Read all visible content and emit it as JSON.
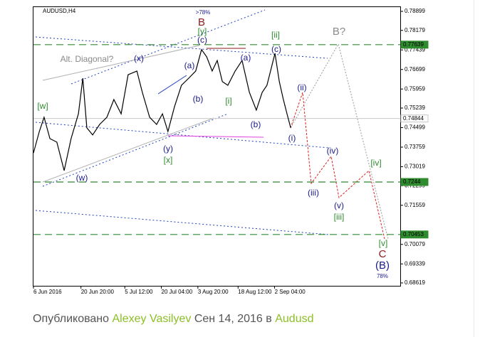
{
  "chart_data": {
    "type": "line",
    "title": "AUDUSD,H4",
    "color": "#000000",
    "x": [
      0,
      1.6,
      2.9,
      4.5,
      6.4,
      8.4,
      10.3,
      12.3,
      13.5,
      14.6,
      16.2,
      18.1,
      20.1,
      22,
      24,
      25.9,
      28.3,
      29.8,
      31.8,
      33.7,
      35.3,
      36.8,
      38.6,
      40.5,
      42.5,
      44.4,
      46,
      47.4,
      48.9,
      50.3,
      51.7,
      53.2,
      55.2,
      57.1,
      59.1,
      61,
      62.6,
      63.9,
      64.9,
      66.1,
      67.3,
      68.4,
      69.4,
      70.4
    ],
    "values": [
      0.7354,
      0.7435,
      0.7489,
      0.7408,
      0.7395,
      0.7287,
      0.7408,
      0.7502,
      0.7637,
      0.7449,
      0.7422,
      0.7462,
      0.7489,
      0.7556,
      0.7502,
      0.765,
      0.7664,
      0.7583,
      0.7489,
      0.7462,
      0.7502,
      0.7435,
      0.7529,
      0.761,
      0.7637,
      0.7664,
      0.7745,
      0.7718,
      0.7664,
      0.7704,
      0.7624,
      0.761,
      0.7664,
      0.7704,
      0.7583,
      0.7516,
      0.7583,
      0.761,
      0.7664,
      0.7731,
      0.7624,
      0.7556,
      0.7502,
      0.7449
    ],
    "xlim": [
      0,
      100
    ],
    "xticks": [
      {
        "value": 0,
        "label": "6 Jun 2016"
      },
      {
        "value": 13,
        "label": "20 Jun 20:00"
      },
      {
        "value": 25,
        "label": "5 Jul 12:00"
      },
      {
        "value": 35,
        "label": "20 Jul 04:00"
      },
      {
        "value": 45,
        "label": "3 Aug 20:00"
      },
      {
        "value": 56,
        "label": "18 Aug 12:00"
      },
      {
        "value": 66,
        "label": "2 Sep 04:00"
      }
    ],
    "ylim": [
      0.6851,
      0.7906
    ],
    "yticks": [
      0.78899,
      0.78179,
      0.77439,
      0.76699,
      0.75959,
      0.75239,
      0.74499,
      0.73759,
      0.73019,
      0.72299,
      0.71559,
      0.70079,
      0.69339,
      0.68619
    ],
    "levels": [
      {
        "value": 0.77639,
        "color": "#2e8b2e"
      },
      {
        "value": 0.74844,
        "color": "#c8c8c8"
      },
      {
        "value": 0.7244,
        "color": "#2e8b2e"
      },
      {
        "value": 0.70453,
        "color": "#2e8b2e"
      }
    ],
    "annotations": [
      ">78%",
      "B",
      "[y]",
      "(c)",
      "[ii]",
      "B?",
      "(c)",
      "Alt. Diagonal?",
      "(x)",
      "(a)",
      "(a)",
      "(ii)",
      "[w]",
      "(b)",
      "[i]",
      "(b)",
      "(i)",
      "(y)",
      "[x]",
      "(iv)",
      "[iv]",
      "(w)",
      "(iii)",
      "(v)",
      "[iii]",
      "[v]",
      "C",
      "(B)",
      "78%"
    ]
  },
  "footer": {
    "prefix": "Опубликовано",
    "author": "Alexey Vasilyev",
    "date": "Сен 14, 2016",
    "in": "в",
    "symbol": "Audusd"
  }
}
